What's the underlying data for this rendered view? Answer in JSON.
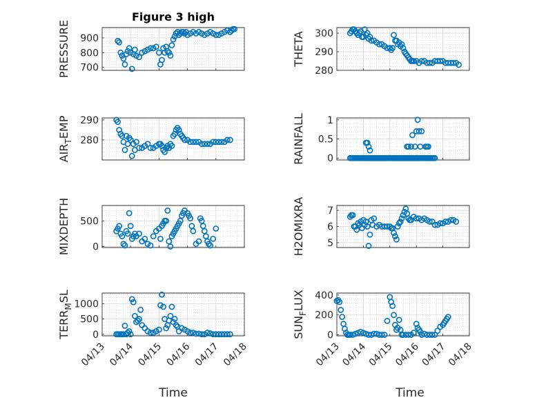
{
  "figure": {
    "title": "Figure 3 high",
    "marker_color": "#0072bd",
    "x_axis_label": "Time",
    "x_range_days": [
      13,
      18
    ],
    "x_tick_days": [
      13,
      14,
      15,
      16,
      17,
      18
    ],
    "x_tick_labels": [
      "04/13",
      "04/14",
      "04/15",
      "04/16",
      "04/17",
      "04/18"
    ]
  },
  "chart_data": [
    {
      "type": "scatter",
      "title": "Figure 3 high",
      "ylabel": "PRESSURE",
      "ylabel_sub": "",
      "ylim": [
        680,
        970
      ],
      "yticks": [
        700,
        800,
        900
      ],
      "x": [
        13.55,
        13.6,
        13.65,
        13.7,
        13.75,
        13.8,
        13.85,
        13.9,
        13.95,
        14.0,
        14.05,
        14.1,
        14.15,
        14.2,
        14.3,
        14.4,
        14.5,
        14.6,
        14.7,
        14.8,
        14.9,
        15.0,
        15.05,
        15.1,
        15.15,
        15.2,
        15.25,
        15.3,
        15.35,
        15.4,
        15.45,
        15.5,
        15.55,
        15.6,
        15.65,
        15.7,
        15.75,
        15.8,
        15.85,
        15.9,
        15.95,
        16.0,
        16.1,
        16.2,
        16.3,
        16.4,
        16.5,
        16.6,
        16.7,
        16.8,
        16.9,
        17.0,
        17.1,
        17.2,
        17.3,
        17.4,
        17.5,
        17.55,
        17.6,
        17.65
      ],
      "y": [
        880,
        870,
        800,
        780,
        760,
        720,
        790,
        810,
        830,
        800,
        690,
        790,
        820,
        780,
        770,
        800,
        810,
        820,
        830,
        830,
        840,
        800,
        720,
        750,
        830,
        800,
        840,
        810,
        800,
        780,
        850,
        890,
        910,
        930,
        940,
        920,
        930,
        940,
        940,
        930,
        940,
        920,
        930,
        940,
        930,
        940,
        930,
        920,
        930,
        940,
        930,
        920,
        920,
        930,
        940,
        950,
        940,
        950,
        960,
        960
      ]
    },
    {
      "type": "scatter",
      "title": "",
      "ylabel": "THETA",
      "ylabel_sub": "",
      "ylim": [
        280,
        303
      ],
      "yticks": [
        280,
        290,
        300
      ],
      "x": [
        13.5,
        13.55,
        13.6,
        13.65,
        13.7,
        13.75,
        13.8,
        13.85,
        13.9,
        13.95,
        14.0,
        14.05,
        14.1,
        14.15,
        14.2,
        14.25,
        14.3,
        14.4,
        14.5,
        14.6,
        14.7,
        14.8,
        14.9,
        15.0,
        15.05,
        15.1,
        15.15,
        15.2,
        15.25,
        15.3,
        15.35,
        15.4,
        15.45,
        15.5,
        15.55,
        15.6,
        15.65,
        15.7,
        15.75,
        15.8,
        15.85,
        15.9,
        16.0,
        16.1,
        16.2,
        16.3,
        16.4,
        16.5,
        16.6,
        16.7,
        16.8,
        16.9,
        17.0,
        17.1,
        17.2,
        17.3,
        17.4,
        17.5,
        17.6
      ],
      "y": [
        300,
        301,
        302,
        302,
        301,
        300,
        299,
        300,
        301,
        298,
        298,
        302,
        299,
        300,
        297,
        298,
        296,
        296,
        295,
        294,
        294,
        293,
        292,
        292,
        291,
        292,
        299,
        296,
        296,
        294,
        295,
        293,
        294,
        292,
        290,
        289,
        288,
        287,
        286,
        285,
        285,
        285,
        285,
        284,
        285,
        285,
        284,
        284,
        284,
        285,
        285,
        285,
        285,
        284,
        284,
        284,
        284,
        284,
        283
      ]
    },
    {
      "type": "scatter",
      "title": "",
      "ylabel": "AIR",
      "ylabel_sub": "T",
      "ylabel_after": "EMP",
      "ylim": [
        270,
        291
      ],
      "yticks": [
        280,
        290
      ],
      "x": [
        13.5,
        13.55,
        13.6,
        13.65,
        13.7,
        13.75,
        13.8,
        13.85,
        13.9,
        13.95,
        14.0,
        14.05,
        14.1,
        14.15,
        14.2,
        14.3,
        14.4,
        14.5,
        14.6,
        14.7,
        14.8,
        14.9,
        15.0,
        15.05,
        15.1,
        15.15,
        15.2,
        15.25,
        15.3,
        15.35,
        15.4,
        15.45,
        15.5,
        15.55,
        15.6,
        15.65,
        15.7,
        15.75,
        15.8,
        15.85,
        15.9,
        16.0,
        16.1,
        16.2,
        16.3,
        16.4,
        16.5,
        16.6,
        16.7,
        16.8,
        16.9,
        17.0,
        17.1,
        17.2,
        17.3,
        17.4,
        17.5
      ],
      "y": [
        290,
        289,
        285,
        283,
        282,
        279,
        275,
        282,
        278,
        281,
        280,
        272,
        278,
        275,
        279,
        276,
        276,
        277,
        278,
        276,
        276,
        277,
        278,
        278,
        277,
        275,
        274,
        276,
        277,
        276,
        278,
        277,
        282,
        283,
        285,
        286,
        285,
        283,
        282,
        281,
        280,
        280,
        279,
        279,
        279,
        279,
        278,
        278,
        278,
        278,
        279,
        279,
        279,
        279,
        279,
        280,
        280
      ]
    },
    {
      "type": "scatter",
      "title": "",
      "ylabel": "RAINFALL",
      "ylabel_sub": "",
      "ylim": [
        -0.05,
        1.05
      ],
      "yticks": [
        0,
        0.5,
        1
      ],
      "ytick_labels": [
        "0",
        "0.5",
        "1"
      ],
      "x": [
        13.5,
        13.55,
        13.6,
        13.65,
        13.7,
        13.75,
        13.8,
        13.85,
        13.9,
        13.95,
        14.0,
        14.05,
        14.1,
        14.15,
        14.2,
        14.25,
        14.3,
        14.35,
        14.4,
        14.45,
        14.5,
        14.55,
        14.6,
        14.65,
        14.7,
        14.75,
        14.8,
        14.85,
        14.9,
        14.95,
        15.0,
        15.05,
        15.1,
        15.15,
        15.2,
        15.25,
        15.3,
        15.35,
        15.4,
        15.45,
        15.5,
        15.55,
        15.6,
        15.65,
        15.7,
        15.75,
        15.8,
        15.85,
        15.9,
        15.95,
        16.0,
        16.05,
        16.1,
        16.15,
        16.2,
        16.25,
        16.3,
        16.35,
        16.4,
        16.45,
        16.5,
        16.55,
        16.6,
        16.65,
        16.7,
        14.1,
        14.15,
        14.2,
        14.25,
        15.65,
        15.7,
        15.8,
        15.85,
        15.95,
        16.0,
        16.05,
        16.1,
        16.15,
        16.2,
        16.35,
        16.4,
        16.45
      ],
      "y": [
        0,
        0,
        0,
        0,
        0,
        0,
        0,
        0,
        0,
        0,
        0,
        0,
        0,
        0,
        0,
        0,
        0,
        0,
        0,
        0,
        0,
        0,
        0,
        0,
        0,
        0,
        0,
        0,
        0,
        0,
        0,
        0,
        0,
        0,
        0,
        0,
        0,
        0,
        0,
        0,
        0,
        0,
        0,
        0,
        0,
        0,
        0,
        0,
        0,
        0,
        0,
        0,
        0,
        0,
        0,
        0,
        0,
        0,
        0,
        0,
        0,
        0,
        0,
        0,
        0,
        0.4,
        0.4,
        0.3,
        0.2,
        0.3,
        0.3,
        0.3,
        0.6,
        0.3,
        0.7,
        1.0,
        0.7,
        0.3,
        0.7,
        0.3,
        0.3,
        0.3
      ]
    },
    {
      "type": "scatter",
      "title": "",
      "ylabel": "MIXDEPTH",
      "ylabel_sub": "",
      "ylim": [
        -20,
        800
      ],
      "yticks": [
        0,
        500
      ],
      "x": [
        13.5,
        13.55,
        13.6,
        13.65,
        13.7,
        13.75,
        13.8,
        13.85,
        13.9,
        13.95,
        14.0,
        14.05,
        14.1,
        14.15,
        14.2,
        14.3,
        14.4,
        14.5,
        14.6,
        14.7,
        14.8,
        14.9,
        15.0,
        15.05,
        15.1,
        15.15,
        15.2,
        15.25,
        15.3,
        15.35,
        15.4,
        15.45,
        15.5,
        15.55,
        15.6,
        15.65,
        15.7,
        15.75,
        15.8,
        15.85,
        15.9,
        16.0,
        16.05,
        16.1,
        16.15,
        16.2,
        16.3,
        16.4,
        16.45,
        16.5,
        16.55,
        16.6,
        16.65,
        16.7,
        16.75,
        16.8,
        16.9,
        17.0
      ],
      "y": [
        300,
        350,
        400,
        250,
        200,
        50,
        20,
        300,
        250,
        650,
        400,
        150,
        200,
        250,
        200,
        250,
        100,
        150,
        50,
        20,
        200,
        300,
        350,
        150,
        400,
        450,
        500,
        500,
        700,
        100,
        0,
        200,
        250,
        300,
        350,
        400,
        450,
        500,
        600,
        650,
        700,
        650,
        600,
        550,
        400,
        300,
        50,
        100,
        550,
        500,
        400,
        300,
        200,
        100,
        50,
        20,
        150,
        350
      ]
    },
    {
      "type": "scatter",
      "title": "",
      "ylabel": "H2OMIXRA",
      "ylabel_sub": "",
      "ylim": [
        4.7,
        7.3
      ],
      "yticks": [
        5,
        6,
        7
      ],
      "x": [
        13.5,
        13.55,
        13.6,
        13.65,
        13.7,
        13.75,
        13.8,
        13.85,
        13.9,
        13.95,
        14.0,
        14.05,
        14.1,
        14.15,
        14.2,
        14.25,
        14.3,
        14.35,
        14.4,
        14.5,
        14.6,
        14.7,
        14.8,
        14.9,
        15.0,
        15.05,
        15.1,
        15.15,
        15.2,
        15.25,
        15.3,
        15.35,
        15.4,
        15.45,
        15.5,
        15.55,
        15.6,
        15.65,
        15.7,
        15.75,
        15.8,
        15.9,
        16.0,
        16.1,
        16.2,
        16.3,
        16.4,
        16.5,
        16.6,
        16.7,
        16.8,
        16.9,
        17.0,
        17.1,
        17.2,
        17.3,
        17.4,
        17.5
      ],
      "y": [
        6.6,
        6.7,
        6.7,
        6.0,
        6.0,
        5.8,
        6.2,
        6.1,
        6.3,
        5.9,
        6.4,
        6.1,
        6.3,
        6.0,
        4.8,
        5.5,
        6.4,
        6.1,
        6.5,
        6.0,
        6.1,
        6.0,
        6.0,
        6.0,
        6.0,
        5.9,
        5.9,
        5.6,
        5.4,
        5.2,
        6.0,
        6.2,
        6.3,
        6.5,
        6.7,
        6.9,
        7.1,
        6.8,
        6.5,
        6.4,
        6.4,
        6.6,
        6.5,
        6.5,
        6.4,
        6.5,
        6.4,
        6.3,
        6.3,
        6.1,
        6.1,
        6.2,
        6.2,
        6.3,
        6.3,
        6.4,
        6.4,
        6.3
      ]
    },
    {
      "type": "scatter",
      "title": "",
      "ylabel": "TERR",
      "ylabel_sub": "M",
      "ylabel_after": "SL",
      "ylim": [
        -50,
        1350
      ],
      "yticks": [
        0,
        500,
        1000
      ],
      "x": [
        13.5,
        13.55,
        13.6,
        13.65,
        13.7,
        13.75,
        13.8,
        13.85,
        13.9,
        13.95,
        14.0,
        14.05,
        14.1,
        14.15,
        14.2,
        14.25,
        14.3,
        14.35,
        14.4,
        14.5,
        14.6,
        14.7,
        14.8,
        14.9,
        15.0,
        15.05,
        15.1,
        15.15,
        15.2,
        15.25,
        15.3,
        15.35,
        15.4,
        15.45,
        15.5,
        15.55,
        15.6,
        15.65,
        15.7,
        15.8,
        15.9,
        16.0,
        16.1,
        16.2,
        16.3,
        16.4,
        16.5,
        16.6,
        16.7,
        16.8,
        16.9,
        17.0,
        17.1,
        17.2,
        17.3,
        17.4,
        17.5
      ],
      "y": [
        0,
        0,
        0,
        0,
        0,
        0,
        280,
        0,
        50,
        100,
        0,
        1150,
        1050,
        600,
        400,
        450,
        500,
        800,
        300,
        200,
        100,
        50,
        50,
        100,
        150,
        950,
        1300,
        900,
        500,
        200,
        300,
        450,
        600,
        900,
        400,
        500,
        300,
        250,
        100,
        200,
        150,
        100,
        50,
        50,
        20,
        20,
        0,
        0,
        50,
        30,
        0,
        0,
        0,
        0,
        0,
        0,
        0
      ]
    },
    {
      "type": "scatter",
      "title": "",
      "ylabel": "SUN",
      "ylabel_sub": "F",
      "ylabel_after": "LUX",
      "ylim": [
        -10,
        420
      ],
      "yticks": [
        0,
        200,
        400
      ],
      "x": [
        13.0,
        13.05,
        13.1,
        13.15,
        13.2,
        13.25,
        13.3,
        13.35,
        13.4,
        13.45,
        13.5,
        13.6,
        13.7,
        13.8,
        13.9,
        14.0,
        14.1,
        14.2,
        14.3,
        14.4,
        14.5,
        14.6,
        14.7,
        14.8,
        14.9,
        15.0,
        15.05,
        15.1,
        15.15,
        15.2,
        15.25,
        15.3,
        15.35,
        15.4,
        15.45,
        15.5,
        15.6,
        15.7,
        15.8,
        15.9,
        16.0,
        16.05,
        16.1,
        16.15,
        16.2,
        16.3,
        16.4,
        16.5,
        16.6,
        16.7,
        16.8,
        16.9,
        17.0,
        17.05,
        17.1,
        17.15,
        17.2
      ],
      "y": [
        340,
        350,
        330,
        250,
        180,
        110,
        60,
        20,
        0,
        0,
        0,
        0,
        10,
        20,
        30,
        20,
        10,
        0,
        0,
        10,
        10,
        0,
        0,
        0,
        140,
        380,
        330,
        290,
        200,
        100,
        50,
        70,
        150,
        50,
        0,
        0,
        0,
        0,
        0,
        20,
        110,
        70,
        50,
        30,
        0,
        10,
        0,
        0,
        0,
        0,
        40,
        80,
        100,
        120,
        140,
        160,
        180
      ]
    }
  ]
}
